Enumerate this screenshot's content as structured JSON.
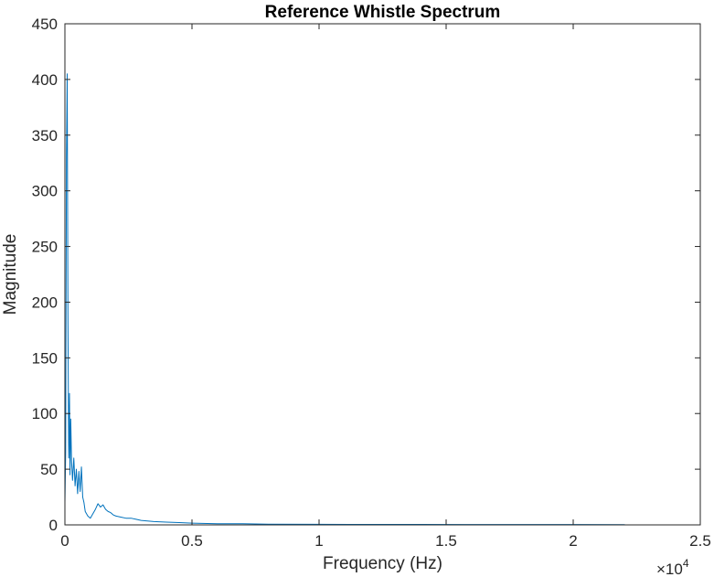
{
  "chart_data": {
    "type": "line",
    "title": "Reference Whistle Spectrum",
    "xlabel": "Frequency (Hz)",
    "ylabel": "Magnitude",
    "xlim": [
      0,
      25000
    ],
    "ylim": [
      0,
      450
    ],
    "x_exponent_label": "×10",
    "x_exponent_power": "4",
    "x_ticks": [
      0,
      5000,
      10000,
      15000,
      20000,
      25000
    ],
    "x_tick_labels": [
      "0",
      "0.5",
      "1",
      "1.5",
      "2",
      "2.5"
    ],
    "y_ticks": [
      0,
      50,
      100,
      150,
      200,
      250,
      300,
      350,
      400,
      450
    ],
    "y_tick_labels": [
      "0",
      "50",
      "100",
      "150",
      "200",
      "250",
      "300",
      "350",
      "400",
      "450"
    ],
    "grid": false,
    "box": true,
    "line_color": "#0072BD",
    "series": [
      {
        "x": [
          0,
          30,
          60,
          90,
          120,
          150,
          180,
          200,
          230,
          260,
          300,
          350,
          400,
          450,
          500,
          550,
          600,
          650,
          700,
          750,
          800,
          900,
          1000,
          1100,
          1200,
          1300,
          1400,
          1500,
          1600,
          1700,
          1800,
          1900,
          2000,
          2200,
          2400,
          2600,
          2800,
          3000,
          3500,
          4000,
          4500,
          5000,
          6000,
          7000,
          8000,
          10000,
          12000,
          14000,
          16000,
          18000,
          20000,
          22000,
          22050
        ],
        "y": [
          20,
          65,
          330,
          405,
          180,
          60,
          118,
          45,
          95,
          58,
          40,
          60,
          35,
          50,
          28,
          48,
          30,
          52,
          25,
          20,
          12,
          8,
          6,
          10,
          14,
          19,
          16,
          18,
          14,
          12,
          11,
          9,
          8,
          7,
          6,
          6,
          5,
          4,
          3,
          2.5,
          2,
          1.5,
          1,
          1,
          0.6,
          0.5,
          0.4,
          0.4,
          0.3,
          0.3,
          0.3,
          0.2,
          0
        ]
      }
    ]
  }
}
